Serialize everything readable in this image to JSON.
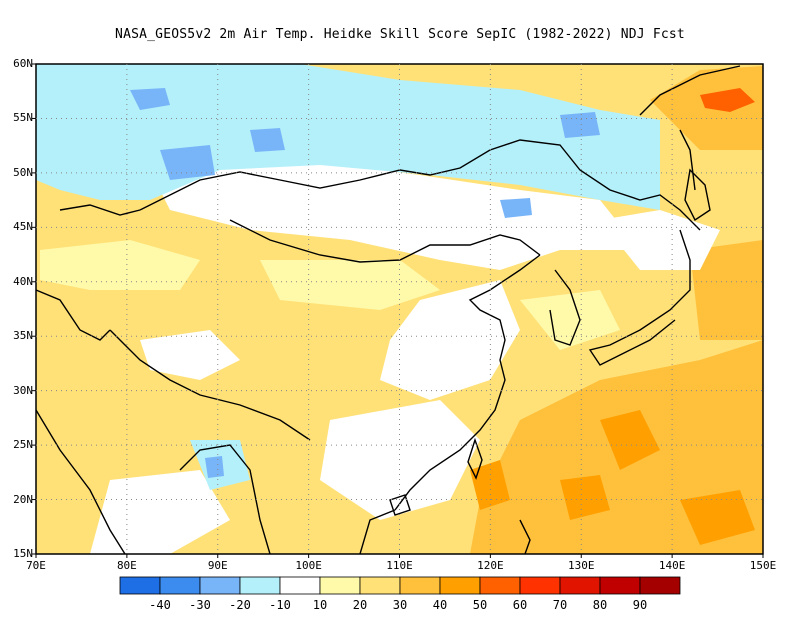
{
  "title": "NASA_GEOS5v2  2m Air Temp. Heidke Skill Score SepIC (1982-2022) NDJ Fcst",
  "map": {
    "lon_range": [
      70,
      150
    ],
    "lat_range": [
      15,
      60
    ],
    "lat_labels": [
      "60N",
      "55N",
      "50N",
      "45N",
      "40N",
      "35N",
      "30N",
      "25N",
      "20N",
      "15N"
    ],
    "lon_labels": [
      "70E",
      "80E",
      "90E",
      "100E",
      "110E",
      "120E",
      "130E",
      "140E",
      "150E"
    ],
    "grid": "dotted"
  },
  "colorbar": {
    "labels": [
      "-40",
      "-30",
      "-20",
      "-10",
      "10",
      "20",
      "30",
      "40",
      "50",
      "60",
      "70",
      "80",
      "90"
    ],
    "colors": [
      "#1e6ee6",
      "#3c8cf0",
      "#78b4f8",
      "#b4f0fa",
      "#ffffff",
      "#fffaaa",
      "#ffe178",
      "#ffc03c",
      "#ffa000",
      "#ff6000",
      "#ff3200",
      "#e11400",
      "#c00000",
      "#a50000"
    ]
  }
}
